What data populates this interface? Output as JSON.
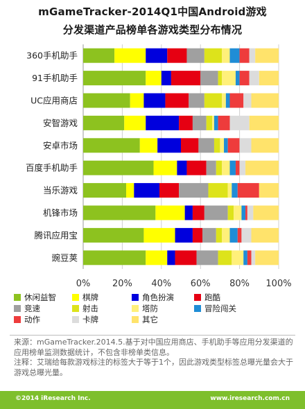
{
  "title": {
    "line1": "mGameTracker-2014Q1中国Android游戏",
    "line2": "分发渠道产品榜单各游戏类型分布情况"
  },
  "chart_data": {
    "type": "bar",
    "orientation": "horizontal",
    "stacked": true,
    "title": "mGameTracker-2014Q1中国Android游戏分发渠道产品榜单各游戏类型分布情况",
    "categories": [
      "360手机助手",
      "91手机助手",
      "UC应用商店",
      "安智游戏",
      "安卓市场",
      "百度手机助手",
      "当乐游戏",
      "机锋市场",
      "腾讯应用宝",
      "豌豆荚"
    ],
    "x_ticks": [
      "0%",
      "20%",
      "40%",
      "60%",
      "80%",
      "100%"
    ],
    "xlim": [
      0,
      100
    ],
    "legend_position": "bottom",
    "grid": true,
    "series": [
      {
        "name": "休闲益智",
        "color": "#8dc21f",
        "values": [
          16,
          32,
          24,
          21,
          29,
          36,
          22,
          37,
          31,
          32
        ]
      },
      {
        "name": "棋牌",
        "color": "#ffff00",
        "values": [
          16,
          8,
          7,
          11,
          9,
          12,
          4,
          15,
          16,
          11
        ]
      },
      {
        "name": "角色扮演",
        "color": "#0000dd",
        "values": [
          11,
          5,
          11,
          17,
          12,
          5,
          13,
          4,
          9,
          4
        ]
      },
      {
        "name": "跑酷",
        "color": "#e60012",
        "values": [
          10,
          15,
          12,
          7,
          9,
          10,
          10,
          6,
          5,
          11
        ]
      },
      {
        "name": "竞速",
        "color": "#a0a0a0",
        "values": [
          9,
          9,
          8,
          7,
          8,
          5,
          15,
          12,
          7,
          11
        ]
      },
      {
        "name": "射击",
        "color": "#dde31b",
        "values": [
          9,
          2,
          9,
          3,
          3,
          3,
          10,
          3,
          3,
          7
        ]
      },
      {
        "name": "塔防",
        "color": "#fff07a",
        "values": [
          4,
          7,
          2,
          1,
          2,
          4,
          2,
          4,
          4,
          6
        ]
      },
      {
        "name": "冒险闯关",
        "color": "#1f8dd6",
        "values": [
          5,
          2,
          2,
          2,
          2,
          3,
          3,
          2,
          4,
          2
        ]
      },
      {
        "name": "动作",
        "color": "#ee3c3c",
        "values": [
          5,
          5,
          7,
          6,
          6,
          2,
          11,
          1,
          2,
          2
        ]
      },
      {
        "name": "卡牌",
        "color": "#dcdcdc",
        "values": [
          3,
          5,
          4,
          10,
          6,
          3,
          0,
          3,
          5,
          2
        ]
      },
      {
        "name": "其它",
        "color": "#ffe36b",
        "values": [
          12,
          10,
          14,
          15,
          14,
          17,
          10,
          13,
          14,
          12
        ]
      }
    ]
  },
  "notes": {
    "source": "来源：mGameTracker.2014.5.基于对中国应用商店、手机助手等应用分发渠道的应用榜单监测数据统计，不包含非榜单类信息。",
    "remark": "注释：艾瑞给每款游戏标注的标签大于等于1个，因此游戏类型标签总曝光量会大于游戏总曝光量。"
  },
  "footer": {
    "copyright": "©2014 iResearch Inc.",
    "website": "www.iresearch.com.cn"
  }
}
